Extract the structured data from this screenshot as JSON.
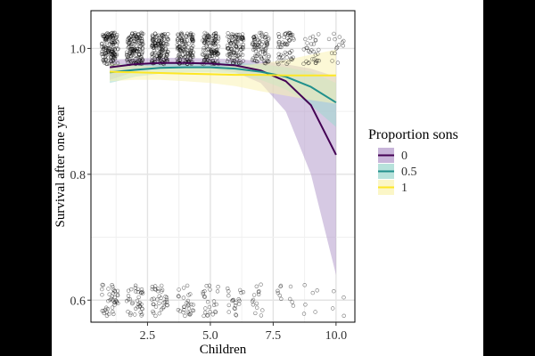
{
  "chart_data": {
    "type": "line",
    "title": "",
    "xlabel": "Children",
    "ylabel": "Survival after one year",
    "xlim": [
      0.25,
      10.75
    ],
    "ylim": [
      0.565,
      1.06
    ],
    "xticks": [
      2.5,
      5.0,
      7.5,
      10.0
    ],
    "xtick_labels": [
      "2.5",
      "5.0",
      "7.5",
      "10.0"
    ],
    "yticks": [
      0.6,
      0.8,
      1.0
    ],
    "ytick_labels": [
      "0.6",
      "0.8",
      "1.0"
    ],
    "grid": true,
    "legend": {
      "title": "Proportion sons",
      "position": "right",
      "entries": [
        "0",
        "0.5",
        "1"
      ]
    },
    "series": [
      {
        "name": "0",
        "color": "#440154",
        "ribbon_color": "#b59ccc",
        "x": [
          1,
          2,
          3,
          4,
          5,
          6,
          7,
          8,
          9,
          10
        ],
        "values": [
          0.97,
          0.975,
          0.977,
          0.977,
          0.976,
          0.973,
          0.965,
          0.948,
          0.91,
          0.831
        ],
        "lower": [
          0.95,
          0.963,
          0.968,
          0.97,
          0.968,
          0.962,
          0.945,
          0.9,
          0.8,
          0.64
        ],
        "upper": [
          0.982,
          0.984,
          0.985,
          0.985,
          0.984,
          0.983,
          0.98,
          0.975,
          0.968,
          0.955
        ]
      },
      {
        "name": "0.5",
        "color": "#21908c",
        "ribbon_color": "#9fd8cf",
        "x": [
          1,
          2,
          3,
          4,
          5,
          6,
          7,
          8,
          9,
          10
        ],
        "values": [
          0.962,
          0.966,
          0.969,
          0.97,
          0.97,
          0.968,
          0.963,
          0.955,
          0.939,
          0.914
        ],
        "lower": [
          0.945,
          0.955,
          0.96,
          0.962,
          0.962,
          0.96,
          0.95,
          0.935,
          0.91,
          0.875
        ],
        "upper": [
          0.975,
          0.976,
          0.977,
          0.978,
          0.978,
          0.977,
          0.975,
          0.97,
          0.963,
          0.945
        ]
      },
      {
        "name": "1",
        "color": "#fde725",
        "ribbon_color": "#faf3b4",
        "x": [
          1,
          2,
          3,
          4,
          5,
          6,
          7,
          8,
          9,
          10
        ],
        "values": [
          0.963,
          0.962,
          0.961,
          0.96,
          0.959,
          0.958,
          0.958,
          0.957,
          0.957,
          0.957
        ],
        "lower": [
          0.948,
          0.95,
          0.95,
          0.948,
          0.945,
          0.94,
          0.932,
          0.925,
          0.918,
          0.912
        ],
        "upper": [
          0.976,
          0.973,
          0.971,
          0.97,
          0.97,
          0.972,
          0.976,
          0.982,
          0.99,
          0.998
        ]
      }
    ],
    "points": {
      "description": "jittered binary outcomes",
      "x": [
        1,
        2,
        3,
        4,
        5,
        6,
        7,
        8,
        9,
        10
      ],
      "survived_value": 1.0,
      "died_value": 0.6,
      "survived_counts": [
        140,
        140,
        140,
        130,
        120,
        100,
        80,
        55,
        30,
        14
      ],
      "died_counts": [
        40,
        36,
        34,
        28,
        24,
        20,
        14,
        10,
        6,
        4
      ]
    }
  }
}
